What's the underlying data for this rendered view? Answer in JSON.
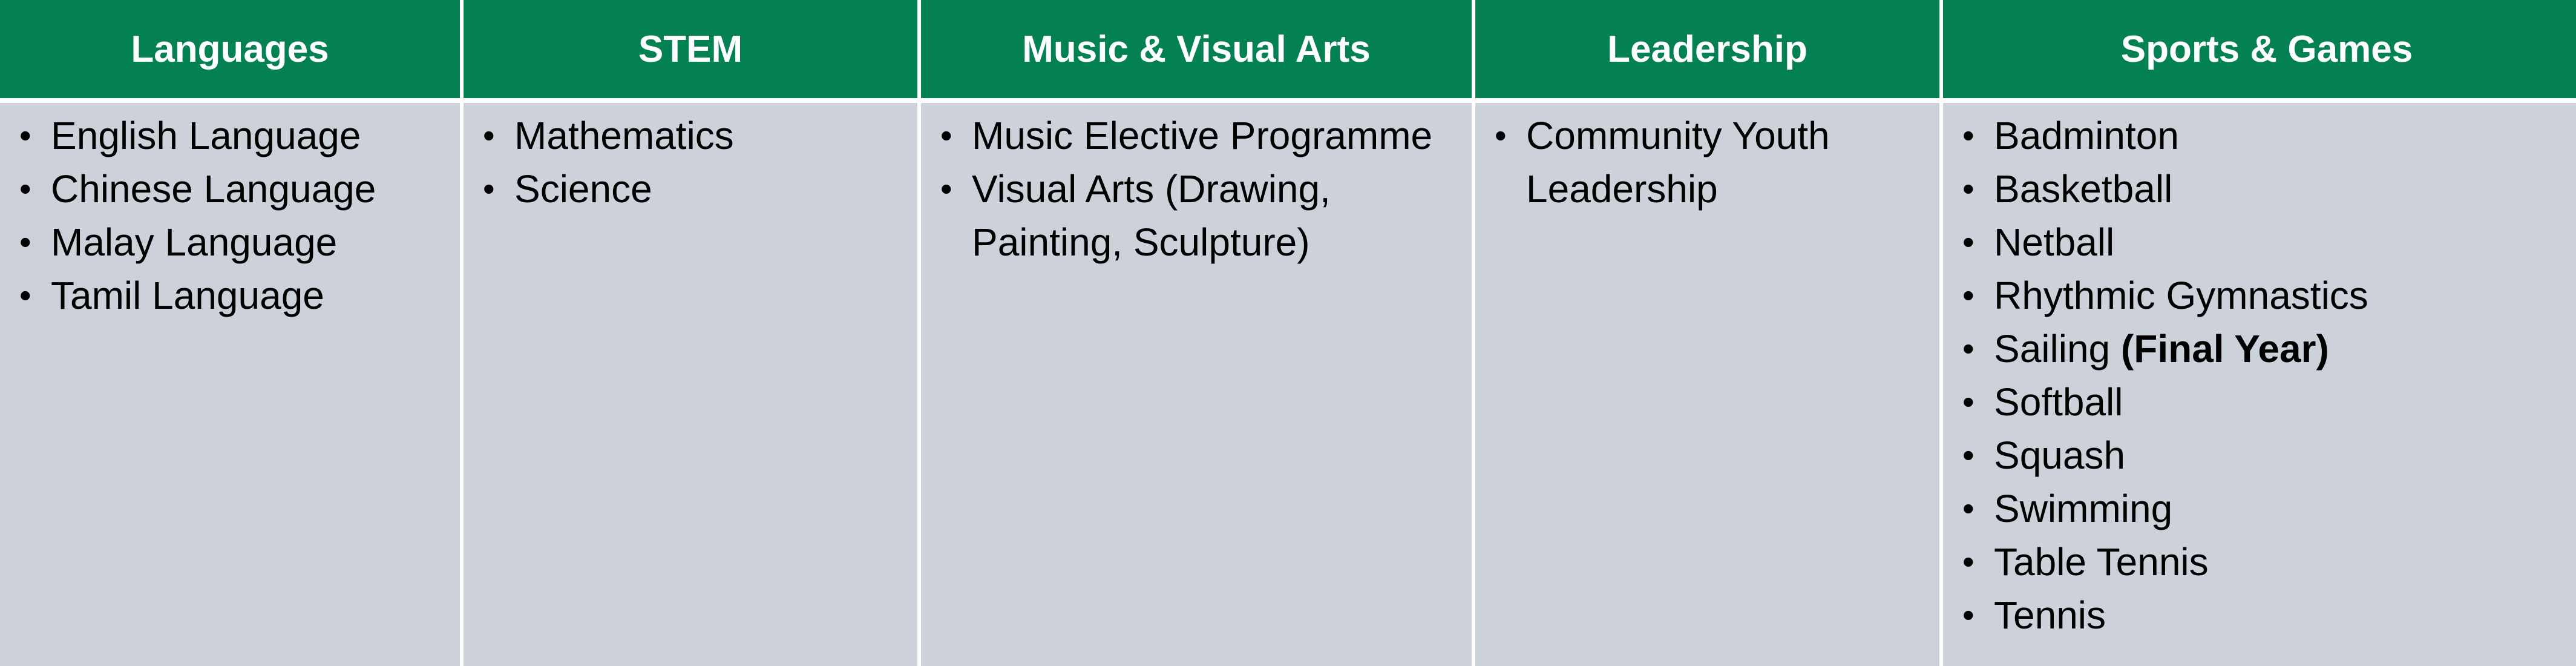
{
  "columns": [
    {
      "header": "Languages",
      "items": [
        "English Language",
        "Chinese Language",
        "Malay Language",
        "Tamil Language"
      ]
    },
    {
      "header": "STEM",
      "items": [
        "Mathematics",
        "Science"
      ]
    },
    {
      "header": "Music & Visual Arts",
      "items": [
        "Music Elective Programme",
        "Visual Arts (Drawing, Painting, Sculpture)"
      ]
    },
    {
      "header": "Leadership",
      "items": [
        "Community Youth Leadership"
      ]
    },
    {
      "header": "Sports & Games",
      "items": [
        "Badminton",
        "Basketball",
        "Netball",
        "Rhythmic Gymnastics",
        "Sailing",
        "Softball",
        "Squash",
        "Swimming",
        "Table Tennis",
        "Tennis"
      ],
      "sailing_note": "(Final Year)"
    }
  ],
  "bullet_char": "•",
  "colors": {
    "header_bg": "#038153",
    "header_text": "#ffffff",
    "body_bg": "#cdd1d9",
    "body_text": "#000000"
  }
}
